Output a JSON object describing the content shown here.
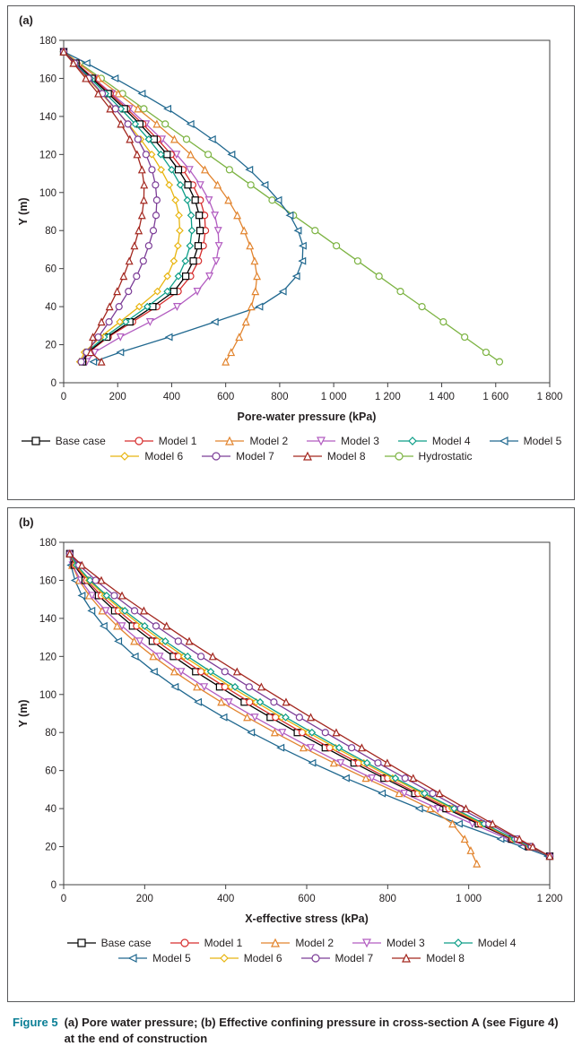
{
  "caption": {
    "label": "Figure 5",
    "line1": "(a) Pore water pressure; (b) Effective confining pressure in cross-section A (see Figure 4)",
    "line2": "at the end of construction"
  },
  "chart_data": [
    {
      "type": "line",
      "tag": "(a)",
      "xlabel": "Pore-water pressure (kPa)",
      "ylabel": "Y (m)",
      "xlim": [
        0,
        1800
      ],
      "ylim": [
        0,
        180
      ],
      "xticks": [
        0,
        200,
        400,
        600,
        800,
        1000,
        1200,
        1400,
        1600,
        1800
      ],
      "xtick_labels": [
        "0",
        "200",
        "400",
        "600",
        "800",
        "1 000",
        "1 200",
        "1 400",
        "1 600",
        "1 800"
      ],
      "yticks": [
        0,
        20,
        40,
        60,
        80,
        100,
        120,
        140,
        160,
        180
      ],
      "ytick_labels": [
        "0",
        "20",
        "40",
        "60",
        "80",
        "100",
        "120",
        "140",
        "160",
        "180"
      ],
      "grid": false,
      "legend_position": "bottom",
      "y_grid": [
        174,
        168,
        160,
        152,
        144,
        136,
        128,
        120,
        112,
        104,
        96,
        88,
        80,
        72,
        64,
        56,
        48,
        40,
        32,
        24,
        16,
        11
      ],
      "legend_rows": [
        [
          "Base case",
          "Model 1",
          "Model 2",
          "Model 3",
          "Model 4",
          "Model 5"
        ],
        [
          "Model 6",
          "Model 7",
          "Model 8",
          "Hydrostatic"
        ]
      ],
      "series": [
        {
          "name": "Hydrostatic",
          "color": "#7cb342",
          "marker": "circle",
          "x": [
            0,
            59,
            139,
            218,
            297,
            376,
            455,
            535,
            614,
            693,
            772,
            851,
            931,
            1010,
            1089,
            1168,
            1247,
            1327,
            1406,
            1485,
            1564,
            1614
          ]
        },
        {
          "name": "Model 5",
          "color": "#20688f",
          "marker": "triangle-left",
          "x": [
            0,
            85,
            190,
            290,
            385,
            470,
            550,
            622,
            688,
            745,
            795,
            838,
            868,
            886,
            884,
            862,
            812,
            725,
            560,
            390,
            210,
            110
          ]
        },
        {
          "name": "Model 2",
          "color": "#e2842e",
          "marker": "triangle-up",
          "x": [
            0,
            55,
            128,
            202,
            275,
            345,
            410,
            470,
            523,
            570,
            610,
            643,
            668,
            690,
            707,
            716,
            710,
            695,
            675,
            650,
            620,
            600
          ]
        },
        {
          "name": "Model 3",
          "color": "#b25cc0",
          "marker": "triangle-down",
          "x": [
            0,
            48,
            112,
            178,
            243,
            305,
            364,
            418,
            466,
            506,
            538,
            560,
            572,
            575,
            565,
            540,
            495,
            420,
            320,
            210,
            115,
            85
          ]
        },
        {
          "name": "Model 1",
          "color": "#d62d2d",
          "marker": "circle",
          "x": [
            0,
            47,
            110,
            172,
            234,
            293,
            348,
            398,
            442,
            478,
            506,
            522,
            525,
            517,
            499,
            470,
            424,
            345,
            255,
            165,
            93,
            72
          ]
        },
        {
          "name": "Base case",
          "color": "#000000",
          "marker": "square",
          "x": [
            0,
            45,
            105,
            165,
            225,
            282,
            335,
            383,
            425,
            460,
            487,
            502,
            505,
            498,
            480,
            452,
            408,
            330,
            245,
            160,
            90,
            70
          ]
        },
        {
          "name": "Model 4",
          "color": "#0d9e88",
          "marker": "diamond",
          "x": [
            0,
            42,
            99,
            155,
            212,
            265,
            315,
            360,
            400,
            432,
            458,
            472,
            475,
            468,
            451,
            425,
            384,
            310,
            230,
            150,
            85,
            66
          ]
        },
        {
          "name": "Model 6",
          "color": "#e8b510",
          "marker": "diamond",
          "x": [
            0,
            38,
            89,
            140,
            191,
            240,
            285,
            326,
            361,
            391,
            414,
            427,
            430,
            423,
            408,
            384,
            347,
            280,
            208,
            136,
            77,
            60
          ]
        },
        {
          "name": "Model 7",
          "color": "#7c3d97",
          "marker": "circle",
          "x": [
            0,
            40,
            92,
            143,
            192,
            238,
            275,
            305,
            327,
            340,
            345,
            342,
            332,
            315,
            295,
            270,
            240,
            205,
            168,
            128,
            85,
            65
          ]
        },
        {
          "name": "Model 8",
          "color": "#a3271f",
          "marker": "triangle-up",
          "x": [
            0,
            36,
            82,
            128,
            172,
            212,
            245,
            272,
            290,
            298,
            297,
            290,
            278,
            262,
            243,
            222,
            198,
            170,
            140,
            108,
            100,
            140
          ]
        }
      ]
    },
    {
      "type": "line",
      "tag": "(b)",
      "xlabel": "X-effective stress (kPa)",
      "ylabel": "Y (m)",
      "xlim": [
        0,
        1200
      ],
      "ylim": [
        0,
        180
      ],
      "xticks": [
        0,
        200,
        400,
        600,
        800,
        1000,
        1200
      ],
      "xtick_labels": [
        "0",
        "200",
        "400",
        "600",
        "800",
        "1 000",
        "1 200"
      ],
      "yticks": [
        0,
        20,
        40,
        60,
        80,
        100,
        120,
        140,
        160,
        180
      ],
      "ytick_labels": [
        "0",
        "20",
        "40",
        "60",
        "80",
        "100",
        "120",
        "140",
        "160",
        "180"
      ],
      "grid": false,
      "legend_position": "bottom",
      "y_grid": [
        174,
        168,
        160,
        152,
        144,
        136,
        128,
        120,
        112,
        104,
        96,
        88,
        80,
        72,
        64,
        56,
        48,
        40,
        32,
        24,
        20,
        15
      ],
      "legend_rows": [
        [
          "Base case",
          "Model 1",
          "Model 2",
          "Model 3",
          "Model 4"
        ],
        [
          "Model 5",
          "Model 6",
          "Model 7",
          "Model 8"
        ]
      ],
      "series": [
        {
          "name": "Model 5",
          "color": "#20688f",
          "marker": "triangle-left",
          "x": [
            15,
            18,
            28,
            45,
            69,
            99,
            135,
            176,
            223,
            275,
            332,
            395,
            463,
            536,
            614,
            697,
            786,
            878,
            976,
            1079,
            1132,
            1195
          ]
        },
        {
          "name": "Model 2",
          "color": "#e2842e",
          "marker": "triangle-up",
          "y": [
            174,
            168,
            160,
            152,
            144,
            136,
            128,
            120,
            112,
            104,
            96,
            88,
            80,
            72,
            64,
            56,
            48,
            40,
            32,
            24,
            18,
            11
          ],
          "x": [
            15,
            21,
            38,
            63,
            95,
            132,
            174,
            221,
            273,
            329,
            389,
            453,
            521,
            592,
            667,
            746,
            828,
            905,
            960,
            990,
            1005,
            1020
          ]
        },
        {
          "name": "Model 3",
          "color": "#b25cc0",
          "marker": "triangle-down",
          "x": [
            15,
            22,
            42,
            70,
            104,
            144,
            188,
            237,
            290,
            347,
            408,
            472,
            540,
            610,
            684,
            761,
            841,
            924,
            1009,
            1098,
            1143,
            1200
          ]
        },
        {
          "name": "Base case",
          "color": "#000000",
          "marker": "square",
          "x": [
            15,
            26,
            53,
            86,
            126,
            170,
            219,
            271,
            326,
            385,
            446,
            510,
            577,
            646,
            717,
            791,
            867,
            944,
            1024,
            1106,
            1148,
            1200
          ]
        },
        {
          "name": "Model 1",
          "color": "#d62d2d",
          "marker": "circle",
          "x": [
            15,
            28,
            57,
            93,
            135,
            180,
            230,
            283,
            339,
            398,
            459,
            523,
            589,
            657,
            728,
            800,
            875,
            951,
            1029,
            1108,
            1149,
            1200
          ]
        },
        {
          "name": "Model 6",
          "color": "#e8b510",
          "marker": "diamond",
          "x": [
            15,
            30,
            62,
            101,
            145,
            192,
            243,
            297,
            354,
            413,
            475,
            538,
            604,
            671,
            741,
            812,
            885,
            959,
            1034,
            1111,
            1151,
            1200
          ]
        },
        {
          "name": "Model 4",
          "color": "#0d9e88",
          "marker": "diamond",
          "x": [
            15,
            32,
            65,
            106,
            151,
            200,
            251,
            306,
            363,
            423,
            485,
            548,
            613,
            680,
            749,
            819,
            891,
            964,
            1038,
            1113,
            1152,
            1200
          ]
        },
        {
          "name": "Model 7",
          "color": "#7c3d97",
          "marker": "circle",
          "x": [
            15,
            38,
            79,
            125,
            175,
            228,
            283,
            339,
            398,
            458,
            519,
            582,
            646,
            711,
            776,
            843,
            911,
            980,
            1050,
            1120,
            1155,
            1200
          ]
        },
        {
          "name": "Model 8",
          "color": "#a3271f",
          "marker": "triangle-up",
          "x": [
            15,
            45,
            93,
            144,
            198,
            254,
            310,
            368,
            428,
            488,
            549,
            610,
            673,
            736,
            799,
            863,
            928,
            993,
            1059,
            1125,
            1158,
            1200
          ]
        }
      ]
    }
  ]
}
